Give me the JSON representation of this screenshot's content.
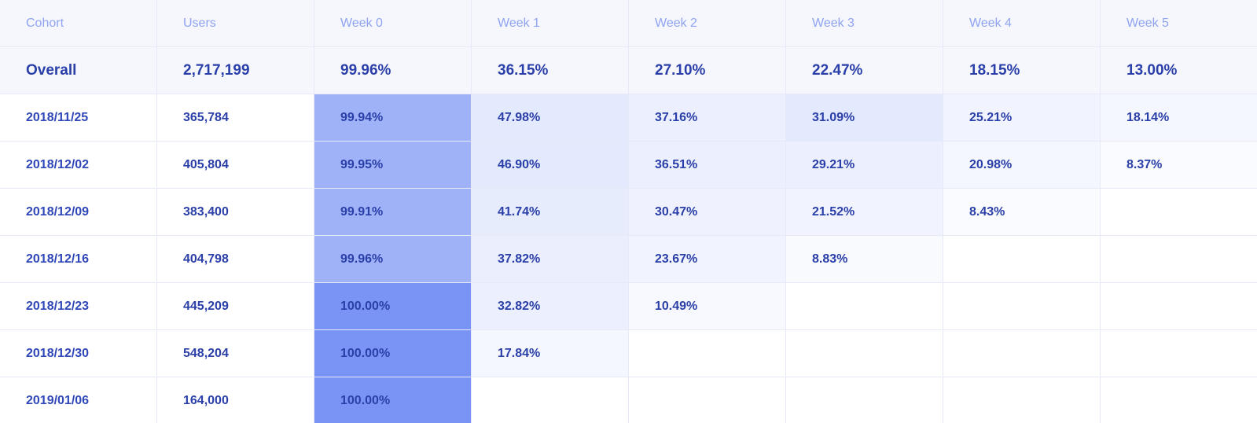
{
  "colors": {
    "header_bg": "#f6f7fd",
    "header_text": "#8fa3f0",
    "body_text": "#2b3fa8",
    "grid_line": "#e6eaf6",
    "heat_base_rgb": [
      122,
      148,
      245
    ]
  },
  "columns": [
    "Cohort",
    "Users",
    "Week 0",
    "Week 1",
    "Week 2",
    "Week 3",
    "Week 4",
    "Week 5"
  ],
  "overall": {
    "label": "Overall",
    "users": "2,717,199",
    "values": [
      "99.96%",
      "36.15%",
      "27.10%",
      "22.47%",
      "18.15%",
      "13.00%"
    ]
  },
  "rows": [
    {
      "cohort": "2018/11/25",
      "users": "365,784",
      "values": [
        "99.94%",
        "47.98%",
        "37.16%",
        "31.09%",
        "25.21%",
        "18.14%"
      ],
      "intensity": [
        0.72,
        0.2,
        0.15,
        0.2,
        0.1,
        0.08
      ]
    },
    {
      "cohort": "2018/12/02",
      "users": "405,804",
      "values": [
        "99.95%",
        "46.90%",
        "36.51%",
        "29.21%",
        "20.98%",
        "8.37%"
      ],
      "intensity": [
        0.72,
        0.2,
        0.15,
        0.14,
        0.08,
        0.04
      ]
    },
    {
      "cohort": "2018/12/09",
      "users": "383,400",
      "values": [
        "99.91%",
        "41.74%",
        "30.47%",
        "21.52%",
        "8.43%",
        ""
      ],
      "intensity": [
        0.72,
        0.18,
        0.12,
        0.1,
        0.04,
        0
      ]
    },
    {
      "cohort": "2018/12/16",
      "users": "404,798",
      "values": [
        "99.96%",
        "37.82%",
        "23.67%",
        "8.83%",
        "",
        ""
      ],
      "intensity": [
        0.72,
        0.16,
        0.1,
        0.05,
        0,
        0
      ]
    },
    {
      "cohort": "2018/12/23",
      "users": "445,209",
      "values": [
        "100.00%",
        "32.82%",
        "10.49%",
        "",
        "",
        ""
      ],
      "intensity": [
        1.0,
        0.14,
        0.06,
        0,
        0,
        0
      ]
    },
    {
      "cohort": "2018/12/30",
      "users": "548,204",
      "values": [
        "100.00%",
        "17.84%",
        "",
        "",
        "",
        ""
      ],
      "intensity": [
        1.0,
        0.08,
        0,
        0,
        0,
        0
      ]
    },
    {
      "cohort": "2019/01/06",
      "users": "164,000",
      "values": [
        "100.00%",
        "",
        "",
        "",
        "",
        ""
      ],
      "intensity": [
        1.0,
        0,
        0,
        0,
        0,
        0
      ]
    }
  ]
}
